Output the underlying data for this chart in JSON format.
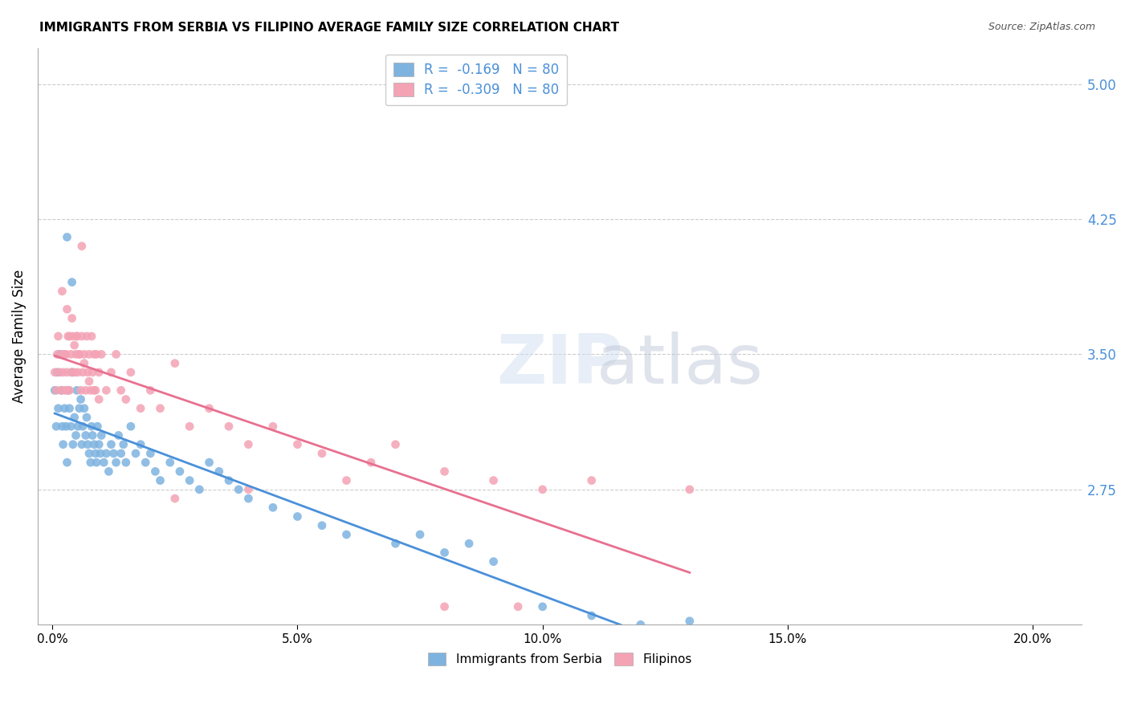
{
  "title": "IMMIGRANTS FROM SERBIA VS FILIPINO AVERAGE FAMILY SIZE CORRELATION CHART",
  "source": "Source: ZipAtlas.com",
  "ylabel": "Average Family Size",
  "xlabel_ticks": [
    "0.0%",
    "5.0%",
    "10.0%",
    "15.0%",
    "20.0%"
  ],
  "xlabel_vals": [
    0.0,
    5.0,
    10.0,
    15.0,
    20.0
  ],
  "yticks": [
    2.75,
    3.5,
    4.25,
    5.0
  ],
  "ylim": [
    2.0,
    5.2
  ],
  "xlim": [
    -0.3,
    21.0
  ],
  "serbia_color": "#7eb3e0",
  "filipino_color": "#f4a3b5",
  "serbia_R": -0.169,
  "serbia_N": 80,
  "filipino_R": -0.309,
  "filipino_N": 80,
  "legend_label_serbia": "R =  -0.169   N = 80",
  "legend_label_filipino": "R =  -0.309   N = 80",
  "watermark": "ZIPatlas",
  "serbia_scatter_x": [
    0.05,
    0.08,
    0.1,
    0.12,
    0.15,
    0.18,
    0.2,
    0.22,
    0.25,
    0.28,
    0.3,
    0.32,
    0.35,
    0.38,
    0.4,
    0.42,
    0.45,
    0.48,
    0.5,
    0.52,
    0.55,
    0.58,
    0.6,
    0.62,
    0.65,
    0.68,
    0.7,
    0.72,
    0.75,
    0.78,
    0.8,
    0.82,
    0.85,
    0.88,
    0.9,
    0.92,
    0.95,
    0.98,
    1.0,
    1.05,
    1.1,
    1.15,
    1.2,
    1.25,
    1.3,
    1.35,
    1.4,
    1.45,
    1.5,
    1.6,
    1.7,
    1.8,
    1.9,
    2.0,
    2.1,
    2.2,
    2.4,
    2.6,
    2.8,
    3.0,
    3.2,
    3.4,
    3.6,
    3.8,
    4.0,
    4.5,
    5.0,
    5.5,
    6.0,
    7.0,
    8.0,
    9.0,
    10.0,
    11.0,
    12.0,
    13.0,
    7.5,
    8.5,
    0.3,
    0.4
  ],
  "serbia_scatter_y": [
    3.3,
    3.1,
    3.4,
    3.2,
    3.5,
    3.3,
    3.1,
    3.0,
    3.2,
    3.1,
    2.9,
    3.3,
    3.2,
    3.1,
    3.4,
    3.0,
    3.15,
    3.05,
    3.3,
    3.1,
    3.2,
    3.25,
    3.0,
    3.1,
    3.2,
    3.05,
    3.15,
    3.0,
    2.95,
    2.9,
    3.1,
    3.05,
    3.0,
    2.95,
    2.9,
    3.1,
    3.0,
    2.95,
    3.05,
    2.9,
    2.95,
    2.85,
    3.0,
    2.95,
    2.9,
    3.05,
    2.95,
    3.0,
    2.9,
    3.1,
    2.95,
    3.0,
    2.9,
    2.95,
    2.85,
    2.8,
    2.9,
    2.85,
    2.8,
    2.75,
    2.9,
    2.85,
    2.8,
    2.75,
    2.7,
    2.65,
    2.6,
    2.55,
    2.5,
    2.45,
    2.4,
    2.35,
    2.1,
    2.05,
    2.0,
    2.02,
    2.5,
    2.45,
    4.15,
    3.9
  ],
  "filipino_scatter_x": [
    0.05,
    0.08,
    0.1,
    0.12,
    0.15,
    0.18,
    0.2,
    0.22,
    0.25,
    0.28,
    0.3,
    0.32,
    0.35,
    0.38,
    0.4,
    0.42,
    0.45,
    0.48,
    0.5,
    0.52,
    0.55,
    0.58,
    0.6,
    0.62,
    0.65,
    0.68,
    0.7,
    0.72,
    0.75,
    0.78,
    0.8,
    0.82,
    0.85,
    0.88,
    0.9,
    0.95,
    1.0,
    1.1,
    1.2,
    1.3,
    1.4,
    1.6,
    1.8,
    2.0,
    2.2,
    2.5,
    2.8,
    3.2,
    3.6,
    4.0,
    4.5,
    5.0,
    5.5,
    6.5,
    7.0,
    8.0,
    9.0,
    10.0,
    11.0,
    13.0,
    0.2,
    0.3,
    0.4,
    0.5,
    0.25,
    0.35,
    0.45,
    0.55,
    0.65,
    0.75,
    0.85,
    0.95,
    1.5,
    2.5,
    4.0,
    6.0,
    8.0,
    9.5,
    0.6,
    0.3
  ],
  "filipino_scatter_y": [
    3.4,
    3.3,
    3.5,
    3.6,
    3.4,
    3.3,
    3.5,
    3.4,
    3.3,
    3.5,
    3.4,
    3.6,
    3.3,
    3.5,
    3.4,
    3.6,
    3.4,
    3.5,
    3.6,
    3.4,
    3.5,
    3.3,
    3.6,
    3.4,
    3.5,
    3.3,
    3.6,
    3.4,
    3.5,
    3.3,
    3.6,
    3.4,
    3.5,
    3.3,
    3.5,
    3.4,
    3.5,
    3.3,
    3.4,
    3.5,
    3.3,
    3.4,
    3.2,
    3.3,
    3.2,
    3.45,
    3.1,
    3.2,
    3.1,
    3.0,
    3.1,
    3.0,
    2.95,
    2.9,
    3.0,
    2.85,
    2.8,
    2.75,
    2.8,
    2.75,
    3.85,
    3.75,
    3.7,
    3.6,
    3.5,
    3.6,
    3.55,
    3.5,
    3.45,
    3.35,
    3.3,
    3.25,
    3.25,
    2.7,
    2.75,
    2.8,
    2.1,
    2.1,
    4.1,
    3.3
  ]
}
